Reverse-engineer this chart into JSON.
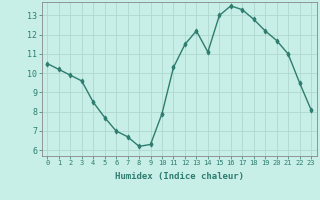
{
  "title": "",
  "xlabel": "Humidex (Indice chaleur)",
  "ylabel": "",
  "x": [
    0,
    1,
    2,
    3,
    4,
    5,
    6,
    7,
    8,
    9,
    10,
    11,
    12,
    13,
    14,
    15,
    16,
    17,
    18,
    19,
    20,
    21,
    22,
    23
  ],
  "y": [
    10.5,
    10.2,
    9.9,
    9.6,
    8.5,
    7.7,
    7.0,
    6.7,
    6.2,
    6.3,
    7.9,
    10.3,
    11.5,
    12.2,
    11.1,
    13.0,
    13.5,
    13.3,
    12.8,
    12.2,
    11.7,
    11.0,
    9.5,
    8.1
  ],
  "line_color": "#2e7d6e",
  "marker": "d",
  "marker_size": 2.5,
  "bg_color": "#c8eee8",
  "grid_color": "#b0d8d0",
  "axis_color": "#2e7d6e",
  "tick_label_color": "#2e7d6e",
  "xlabel_color": "#2e7d6e",
  "ylim": [
    5.7,
    13.7
  ],
  "xlim": [
    -0.5,
    23.5
  ],
  "yticks": [
    6,
    7,
    8,
    9,
    10,
    11,
    12,
    13
  ],
  "xticks": [
    0,
    1,
    2,
    3,
    4,
    5,
    6,
    7,
    8,
    9,
    10,
    11,
    12,
    13,
    14,
    15,
    16,
    17,
    18,
    19,
    20,
    21,
    22,
    23
  ]
}
